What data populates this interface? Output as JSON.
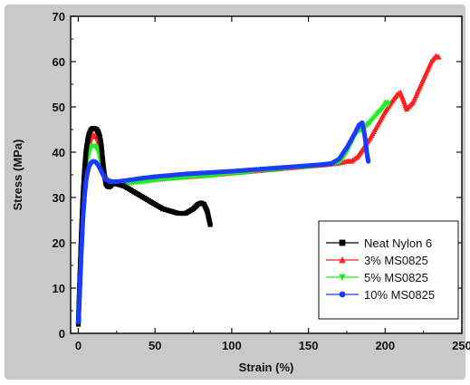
{
  "chart_data": {
    "type": "line",
    "title": "",
    "xlabel": "Strain (%)",
    "ylabel": "Stress (MPa)",
    "xlim": [
      -5,
      250
    ],
    "ylim": [
      0,
      70
    ],
    "xticks": [
      0,
      50,
      100,
      150,
      200,
      250
    ],
    "yticks": [
      0,
      10,
      20,
      30,
      40,
      50,
      60,
      70
    ],
    "grid": false,
    "legend_position": "bottom-right",
    "series": [
      {
        "name": "Neat Nylon 6",
        "color": "#000000",
        "marker": "square",
        "x": [
          0,
          1,
          2,
          3,
          4,
          5,
          6,
          7,
          8,
          9,
          10,
          11,
          12,
          13,
          14,
          15,
          16,
          17,
          18,
          19,
          20,
          21,
          22,
          25,
          30,
          35,
          40,
          45,
          50,
          55,
          60,
          65,
          70,
          75,
          78,
          80,
          82,
          84,
          85,
          86
        ],
        "y": [
          2,
          12,
          22,
          30,
          36,
          40,
          42.5,
          44,
          44.8,
          45.2,
          45.3,
          45.2,
          45,
          44.5,
          43.5,
          41.5,
          38,
          35,
          33,
          32.5,
          32.3,
          32.5,
          33,
          33,
          32.5,
          31.5,
          30.5,
          29.5,
          28.5,
          27.5,
          27,
          26.5,
          26.5,
          27.5,
          28.5,
          28.8,
          28.5,
          27,
          25.5,
          24
        ]
      },
      {
        "name": "3% MS0825",
        "color": "#ff2020",
        "marker": "triangle-up",
        "x": [
          0,
          1,
          2,
          3,
          4,
          5,
          6,
          7,
          8,
          9,
          10,
          11,
          12,
          13,
          14,
          15,
          16,
          17,
          18,
          20,
          22,
          25,
          30,
          40,
          50,
          60,
          80,
          100,
          120,
          140,
          160,
          170,
          175,
          178,
          180,
          182,
          185,
          190,
          195,
          200,
          205,
          208,
          210,
          212,
          214,
          218,
          222,
          226,
          230,
          233,
          235
        ],
        "y": [
          3,
          12,
          22,
          30,
          35,
          38.5,
          40.5,
          42,
          43,
          43.6,
          43.8,
          43.7,
          43.3,
          42.5,
          41,
          39,
          37,
          35.5,
          34.5,
          33.8,
          33.5,
          33.3,
          33.3,
          33.6,
          34,
          34.3,
          34.8,
          35.4,
          36,
          36.6,
          37.2,
          37.6,
          38,
          38,
          38.5,
          39,
          40.5,
          43,
          46,
          49,
          51.5,
          52.8,
          53.2,
          51.5,
          49.5,
          51,
          54,
          57,
          60,
          61.2,
          61
        ]
      },
      {
        "name": "5% MS0825",
        "color": "#22ee22",
        "marker": "triangle-down",
        "x": [
          0,
          1,
          2,
          3,
          4,
          5,
          6,
          7,
          8,
          9,
          10,
          11,
          12,
          13,
          14,
          15,
          16,
          17,
          18,
          20,
          22,
          25,
          30,
          40,
          50,
          60,
          80,
          100,
          120,
          140,
          160,
          170,
          172,
          175,
          178,
          180,
          182,
          185,
          190,
          195,
          198,
          200,
          201,
          202
        ],
        "y": [
          3,
          12,
          21,
          28,
          33,
          36.5,
          38.5,
          39.8,
          40.8,
          41.3,
          41.4,
          41.2,
          40.8,
          40,
          38.8,
          37.3,
          35.8,
          34.7,
          34,
          33.4,
          33.2,
          33,
          33,
          33.4,
          33.8,
          34.2,
          34.7,
          35.3,
          36,
          36.6,
          37.2,
          37.8,
          38.5,
          40,
          42,
          43.5,
          44.5,
          45,
          46.5,
          48.5,
          49.5,
          50.5,
          51,
          50.5
        ]
      },
      {
        "name": "10% MS0825",
        "color": "#1a3cff",
        "marker": "circle",
        "x": [
          0,
          1,
          2,
          3,
          4,
          5,
          6,
          7,
          8,
          9,
          10,
          11,
          12,
          13,
          14,
          15,
          16,
          17,
          18,
          20,
          22,
          25,
          30,
          40,
          50,
          60,
          70,
          80,
          100,
          120,
          140,
          160,
          165,
          170,
          175,
          180,
          183,
          185,
          186,
          187,
          187.5,
          188,
          188.5,
          189
        ],
        "y": [
          2.5,
          10,
          18,
          25,
          30,
          33.5,
          35.5,
          36.8,
          37.5,
          37.9,
          38,
          37.9,
          37.6,
          37.1,
          36.5,
          35.8,
          35.1,
          34.5,
          34,
          33.6,
          33.5,
          33.5,
          33.7,
          34.2,
          34.6,
          34.9,
          35.2,
          35.4,
          35.8,
          36.3,
          36.8,
          37.3,
          37.5,
          38.5,
          41,
          44,
          46,
          46.5,
          45,
          43,
          41.5,
          40,
          39,
          38
        ]
      }
    ]
  }
}
